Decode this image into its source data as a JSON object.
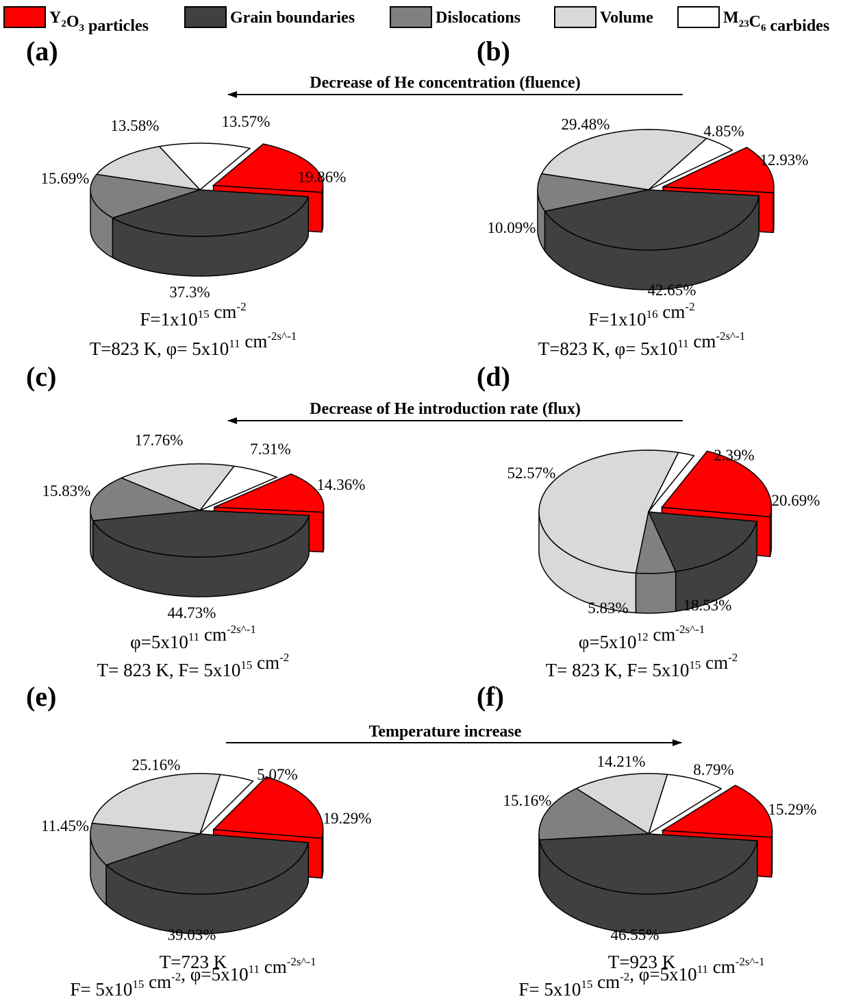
{
  "legend": [
    {
      "key": "y2o3",
      "label_html": "Y<tspan baseline-shift='sub' font-size='15'>2</tspan>O<tspan baseline-shift='sub' font-size='15'>3</tspan> particles",
      "label": "Y2O3 particles",
      "color": "#ff0000"
    },
    {
      "key": "gb",
      "label": "Grain boundaries",
      "color": "#404040"
    },
    {
      "key": "disl",
      "label": "Dislocations",
      "color": "#808080"
    },
    {
      "key": "vol",
      "label": "Volume",
      "color": "#d9d9d9"
    },
    {
      "key": "carb",
      "label": "M23C6 carbides",
      "color": "#ffffff"
    }
  ],
  "arrows": [
    {
      "label": "Decrease of He concentration (fluence)",
      "direction": "left"
    },
    {
      "label": "Decrease of He introduction rate (flux)",
      "direction": "left"
    },
    {
      "label": "Temperature increase",
      "direction": "right"
    }
  ],
  "chart_data": [
    {
      "panel": "(a)",
      "type": "pie",
      "categories": [
        "Y2O3 particles",
        "Grain boundaries",
        "Dislocations",
        "Volume",
        "M23C6 carbides"
      ],
      "values": [
        19.86,
        37.3,
        15.69,
        13.58,
        13.57
      ],
      "value_labels": [
        "19.86%",
        "37.3%",
        "15.69%",
        "13.58%",
        "13.57%"
      ],
      "caption_line1": {
        "base": "F=1x10",
        "sup": "15",
        "rest": " cm",
        "sup2": "-2"
      },
      "caption_line2": "T=823 K, φ= 5x10^11 cm^-2s^-1"
    },
    {
      "panel": "(b)",
      "type": "pie",
      "categories": [
        "Y2O3 particles",
        "Grain boundaries",
        "Dislocations",
        "Volume",
        "M23C6 carbides"
      ],
      "values": [
        12.93,
        42.65,
        10.09,
        29.48,
        4.85
      ],
      "value_labels": [
        "12.93%",
        "42.65%",
        "10.09%",
        "29.48%",
        "4.85%"
      ],
      "caption_line1": "F=1x10^16 cm^-2",
      "caption_line2": "T=823 K, φ= 5x10^11 cm^-2s^-1"
    },
    {
      "panel": "(c)",
      "type": "pie",
      "categories": [
        "Y2O3 particles",
        "Grain boundaries",
        "Dislocations",
        "Volume",
        "M23C6 carbides"
      ],
      "values": [
        14.36,
        44.73,
        15.83,
        17.76,
        7.31
      ],
      "value_labels": [
        "14.36%",
        "44.73%",
        "15.83%",
        "17.76%",
        "7.31%"
      ],
      "caption_line1": "φ=5x10^11 cm^-2s^-1",
      "caption_line2": "T= 823 K, F= 5x10^15 cm^-2"
    },
    {
      "panel": "(d)",
      "type": "pie",
      "categories": [
        "Y2O3 particles",
        "Grain boundaries",
        "Dislocations",
        "Volume",
        "M23C6 carbides"
      ],
      "values": [
        20.69,
        18.53,
        5.83,
        52.57,
        2.39
      ],
      "value_labels": [
        "20.69%",
        "18.53%",
        "5.83%",
        "52.57%",
        "2.39%"
      ],
      "caption_line1": "φ=5x10^12 cm^-2s^-1",
      "caption_line2": "T= 823 K, F= 5x10^15 cm^-2"
    },
    {
      "panel": "(e)",
      "type": "pie",
      "categories": [
        "Y2O3 particles",
        "Grain boundaries",
        "Dislocations",
        "Volume",
        "M23C6 carbides"
      ],
      "values": [
        19.29,
        39.03,
        11.45,
        25.16,
        5.07
      ],
      "value_labels": [
        "19.29%",
        "39.03%",
        "11.45%",
        "25.16%",
        "5.07%"
      ],
      "caption_line1": "T=723 K",
      "caption_line2": "F= 5x10^15 cm^-2,   φ=5x10^11 cm^-2s^-1"
    },
    {
      "panel": "(f)",
      "type": "pie",
      "categories": [
        "Y2O3 particles",
        "Grain boundaries",
        "Dislocations",
        "Volume",
        "M23C6 carbides"
      ],
      "values": [
        15.29,
        46.55,
        15.16,
        14.21,
        8.79
      ],
      "value_labels": [
        "15.29%",
        "46.55%",
        "15.16%",
        "14.21%",
        "8.79%"
      ],
      "caption_line1": "T=923 K",
      "caption_line2": "F= 5x10^15 cm^-2,   φ=5x10^11 cm^-2s^-1"
    }
  ]
}
